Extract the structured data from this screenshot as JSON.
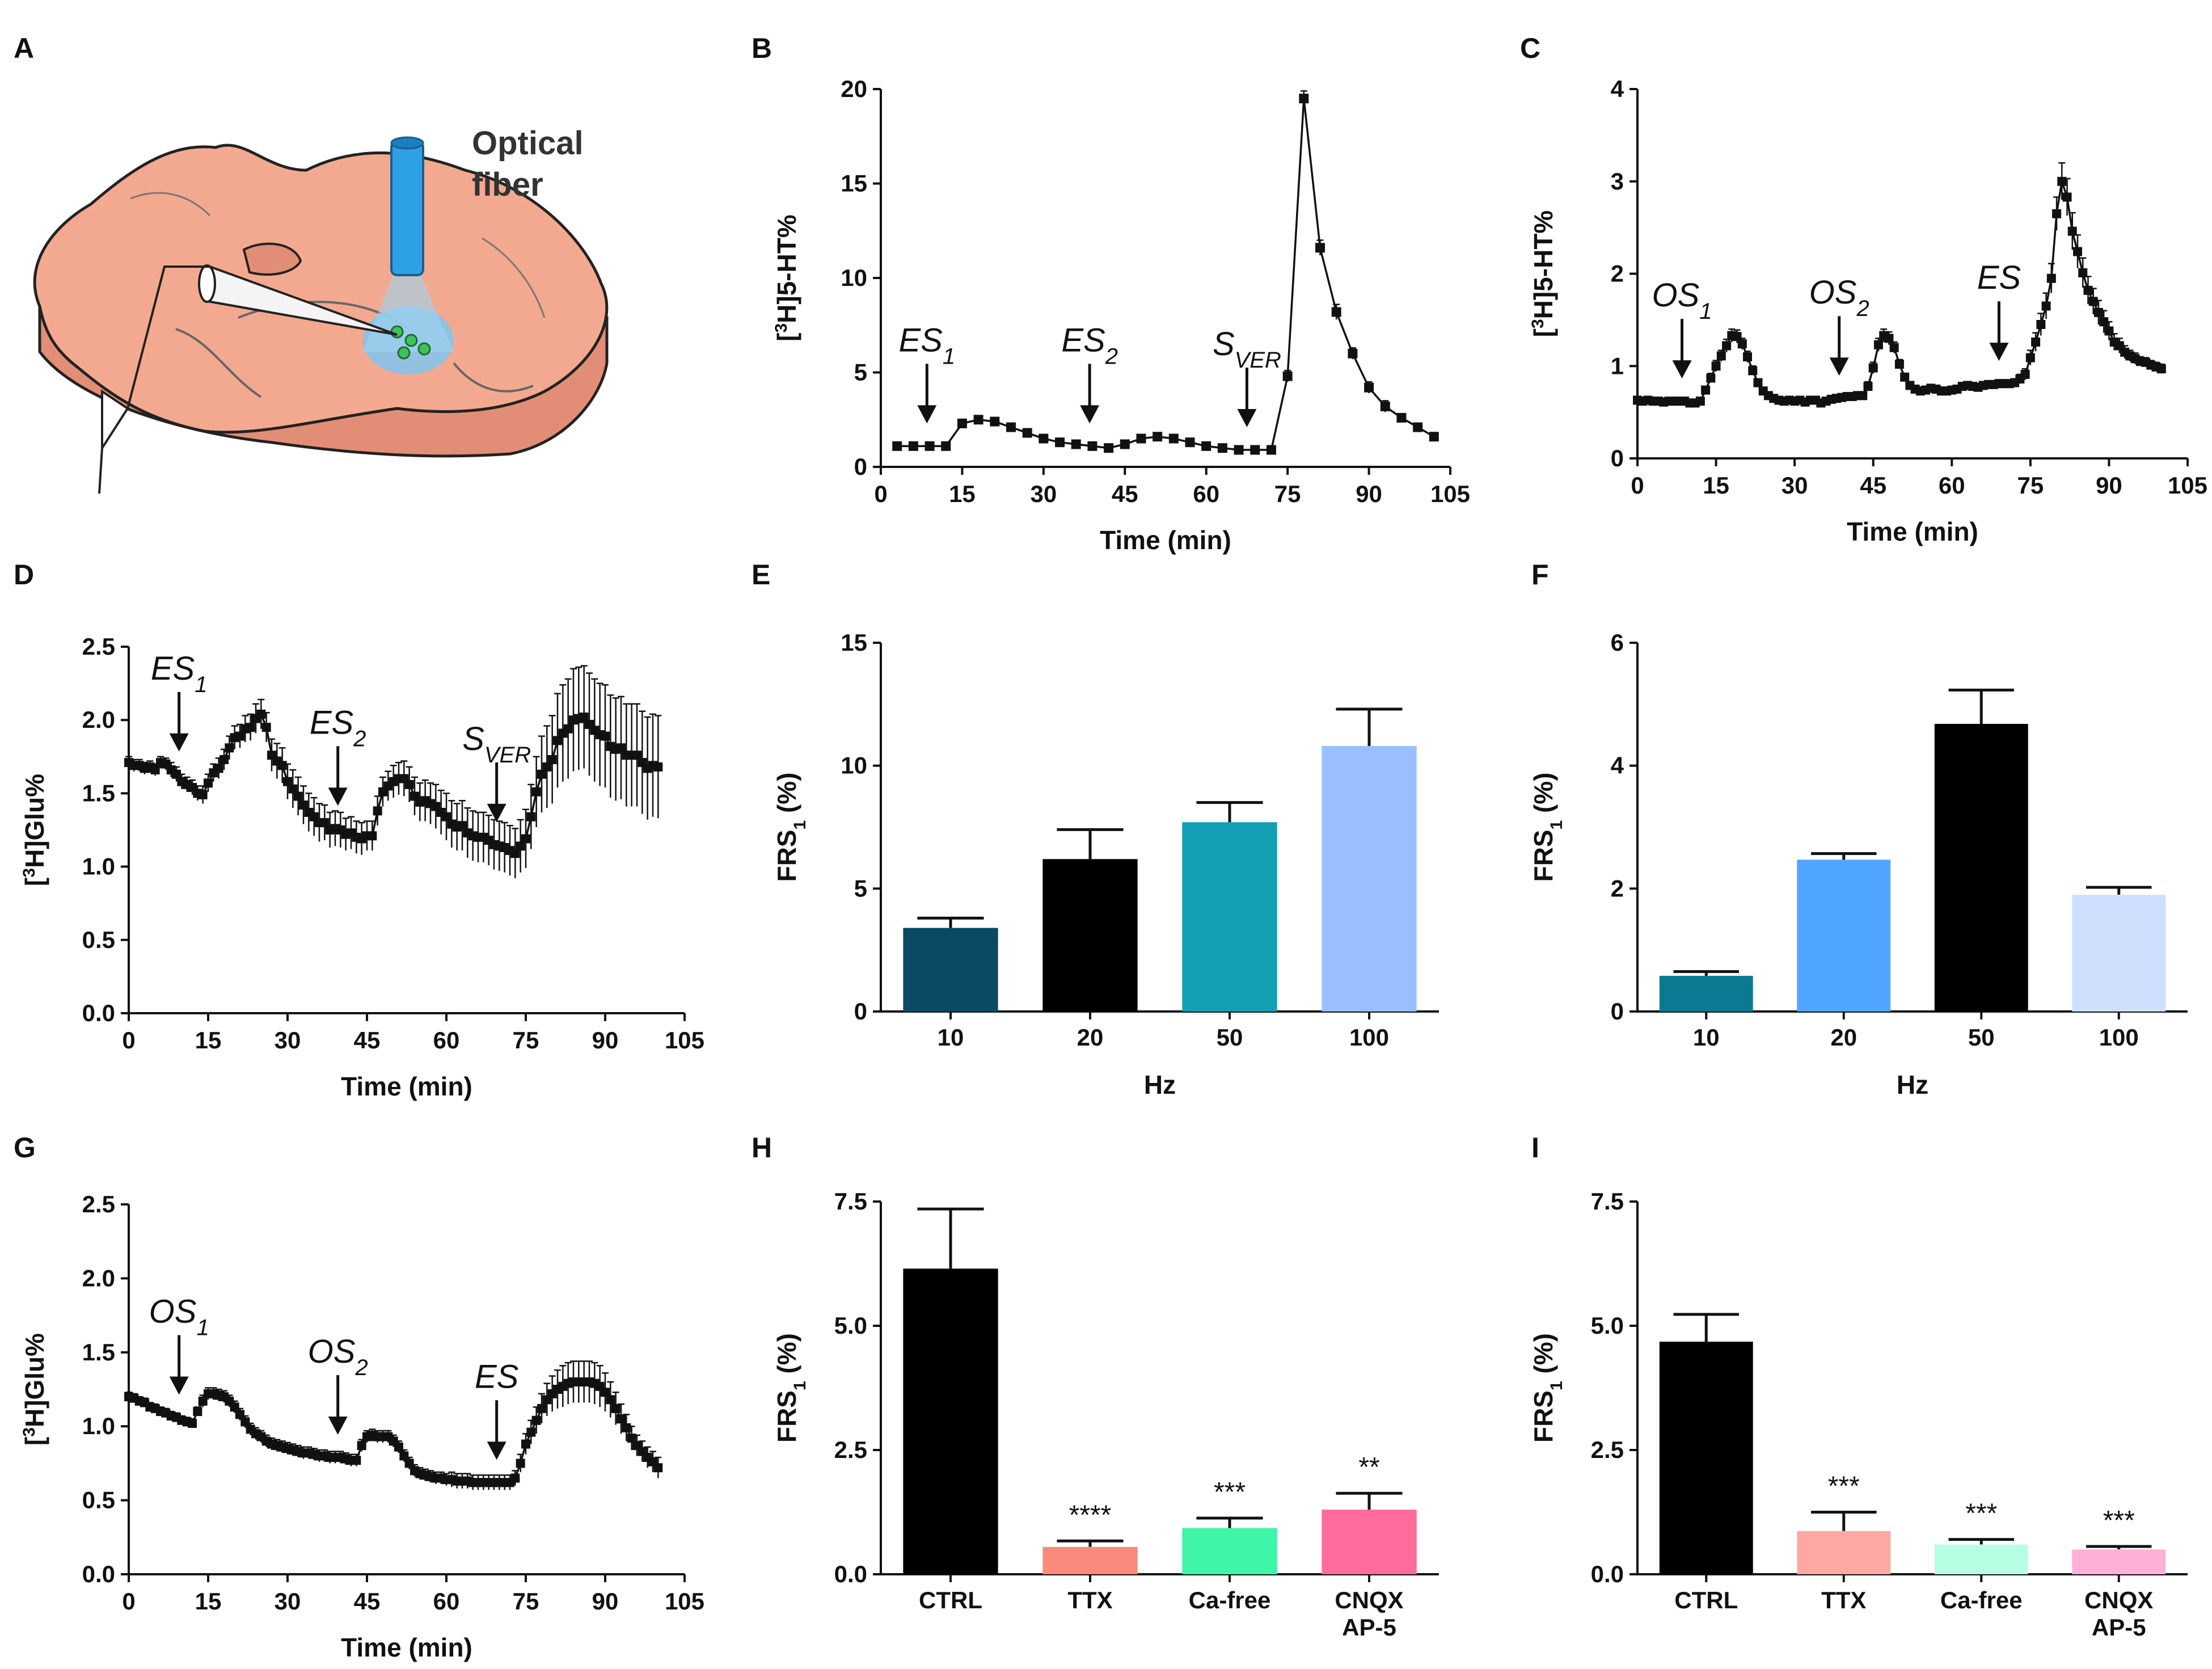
{
  "panel_labels": [
    "A",
    "B",
    "C",
    "D",
    "E",
    "F",
    "G",
    "H",
    "I"
  ],
  "schematic": {
    "fiber_label_1": "Optical",
    "fiber_label_2": "fiber",
    "colors": {
      "slice": "#f3a98f",
      "slice_side": "#e28e77",
      "fiber": "#2ea0e6",
      "glow": "#7fc4ee",
      "cells": "#3fc25a"
    }
  },
  "chart_data": [
    {
      "id": "B",
      "type": "line",
      "ylabel": "[3H]5-HT%",
      "xlabel": "Time (min)",
      "xlim": [
        0,
        105
      ],
      "ylim": [
        0,
        20
      ],
      "xticks": [
        0,
        15,
        30,
        45,
        60,
        75,
        90,
        105
      ],
      "yticks": [
        0,
        5,
        10,
        15,
        20
      ],
      "x": [
        3,
        6,
        9,
        12,
        15,
        18,
        21,
        24,
        27,
        30,
        33,
        36,
        39,
        42,
        45,
        48,
        51,
        54,
        57,
        60,
        63,
        66,
        69,
        72,
        75,
        78,
        81,
        84,
        87,
        90,
        93,
        96,
        99,
        102
      ],
      "y": [
        1.1,
        1.1,
        1.1,
        1.1,
        2.3,
        2.5,
        2.4,
        2.1,
        1.8,
        1.5,
        1.3,
        1.2,
        1.1,
        1.0,
        1.2,
        1.5,
        1.6,
        1.5,
        1.3,
        1.1,
        1.0,
        0.9,
        0.9,
        0.9,
        4.8,
        19.5,
        11.6,
        8.2,
        6.0,
        4.2,
        3.2,
        2.6,
        2.1,
        1.6
      ],
      "err": [
        0.1,
        0.1,
        0.1,
        0.1,
        0.2,
        0.2,
        0.2,
        0.2,
        0.1,
        0.1,
        0.1,
        0.1,
        0.1,
        0.1,
        0.1,
        0.1,
        0.1,
        0.1,
        0.1,
        0.1,
        0.1,
        0.1,
        0.1,
        0.1,
        0.3,
        0.4,
        0.4,
        0.4,
        0.3,
        0.3,
        0.3,
        0.2,
        0.2,
        0.2
      ],
      "arrows": [
        {
          "x": 8.5,
          "label": "ES",
          "sub": "1"
        },
        {
          "x": 38.5,
          "label": "ES",
          "sub": "2"
        },
        {
          "x": 67.5,
          "label": "S",
          "sub": "VER"
        }
      ],
      "color": "#111111"
    },
    {
      "id": "C",
      "type": "line",
      "ylabel": "[3H]5-HT%",
      "xlabel": "Time (min)",
      "xlim": [
        0,
        105
      ],
      "ylim": [
        0,
        4
      ],
      "xticks": [
        0,
        15,
        30,
        45,
        60,
        75,
        90,
        105
      ],
      "yticks": [
        0,
        1,
        2,
        3,
        4
      ],
      "x": [
        0,
        1,
        2,
        3,
        4,
        5,
        6,
        7,
        8,
        9,
        10,
        11,
        12,
        13,
        14,
        15,
        16,
        17,
        18,
        19,
        20,
        21,
        22,
        23,
        24,
        25,
        26,
        27,
        28,
        29,
        30,
        31,
        32,
        33,
        34,
        35,
        36,
        37,
        38,
        39,
        40,
        41,
        42,
        43,
        44,
        45,
        46,
        47,
        48,
        49,
        50,
        51,
        52,
        53,
        54,
        55,
        56,
        57,
        58,
        59,
        60,
        61,
        62,
        63,
        64,
        65,
        66,
        67,
        68,
        69,
        70,
        71,
        72,
        73,
        74,
        75,
        76,
        77,
        78,
        79,
        80,
        81,
        82,
        83,
        84,
        85,
        86,
        87,
        88,
        89,
        90,
        91,
        92,
        93,
        94,
        95,
        96,
        97,
        98,
        99,
        100
      ],
      "y": [
        0.63,
        0.62,
        0.63,
        0.62,
        0.62,
        0.61,
        0.62,
        0.62,
        0.62,
        0.62,
        0.6,
        0.6,
        0.62,
        0.74,
        0.87,
        1.0,
        1.11,
        1.22,
        1.33,
        1.32,
        1.24,
        1.1,
        0.95,
        0.82,
        0.73,
        0.68,
        0.65,
        0.63,
        0.62,
        0.63,
        0.62,
        0.63,
        0.61,
        0.63,
        0.63,
        0.6,
        0.62,
        0.64,
        0.65,
        0.66,
        0.67,
        0.67,
        0.68,
        0.68,
        0.78,
        0.98,
        1.23,
        1.33,
        1.3,
        1.2,
        1.02,
        0.88,
        0.79,
        0.75,
        0.73,
        0.74,
        0.76,
        0.75,
        0.73,
        0.73,
        0.74,
        0.75,
        0.78,
        0.79,
        0.78,
        0.77,
        0.79,
        0.8,
        0.8,
        0.81,
        0.81,
        0.81,
        0.82,
        0.86,
        0.91,
        1.09,
        1.26,
        1.45,
        1.65,
        1.95,
        2.65,
        3.0,
        2.83,
        2.46,
        2.24,
        2.01,
        1.82,
        1.7,
        1.58,
        1.48,
        1.38,
        1.26,
        1.22,
        1.15,
        1.11,
        1.08,
        1.05,
        1.04,
        1.01,
        0.99,
        0.97
      ],
      "err": [
        0.02,
        0.02,
        0.02,
        0.02,
        0.02,
        0.02,
        0.02,
        0.02,
        0.02,
        0.02,
        0.02,
        0.02,
        0.03,
        0.04,
        0.05,
        0.06,
        0.06,
        0.07,
        0.07,
        0.07,
        0.06,
        0.06,
        0.05,
        0.04,
        0.04,
        0.03,
        0.03,
        0.03,
        0.03,
        0.03,
        0.03,
        0.03,
        0.03,
        0.03,
        0.03,
        0.03,
        0.03,
        0.03,
        0.03,
        0.03,
        0.03,
        0.03,
        0.03,
        0.03,
        0.05,
        0.06,
        0.07,
        0.07,
        0.07,
        0.06,
        0.05,
        0.04,
        0.04,
        0.04,
        0.04,
        0.04,
        0.04,
        0.04,
        0.04,
        0.04,
        0.04,
        0.04,
        0.04,
        0.04,
        0.04,
        0.04,
        0.04,
        0.04,
        0.04,
        0.04,
        0.04,
        0.04,
        0.04,
        0.05,
        0.06,
        0.08,
        0.1,
        0.12,
        0.14,
        0.16,
        0.18,
        0.2,
        0.2,
        0.2,
        0.18,
        0.16,
        0.15,
        0.14,
        0.13,
        0.12,
        0.1,
        0.09,
        0.08,
        0.07,
        0.06,
        0.06,
        0.05,
        0.05,
        0.05,
        0.05,
        0.05
      ],
      "arrows": [
        {
          "x": 8.5,
          "label": "OS",
          "sub": "1"
        },
        {
          "x": 38.5,
          "label": "OS",
          "sub": "2"
        },
        {
          "x": 69,
          "label": "ES",
          "sub": ""
        }
      ],
      "color": "#111111"
    },
    {
      "id": "D",
      "type": "line",
      "ylabel": "[3H]Glu%",
      "xlabel": "Time (min)",
      "xlim": [
        0,
        105
      ],
      "ylim": [
        0,
        2.5
      ],
      "xticks": [
        0,
        15,
        30,
        45,
        60,
        75,
        90,
        105
      ],
      "yticks": [
        "0.0",
        "0.5",
        "1.0",
        "1.5",
        "2.0",
        "2.5"
      ],
      "x": [
        0,
        1,
        2,
        3,
        4,
        5,
        6,
        7,
        8,
        9,
        10,
        11,
        12,
        13,
        14,
        15,
        16,
        17,
        18,
        19,
        20,
        21,
        22,
        23,
        24,
        25,
        26,
        27,
        28,
        29,
        30,
        31,
        32,
        33,
        34,
        35,
        36,
        37,
        38,
        39,
        40,
        41,
        42,
        43,
        44,
        45,
        46,
        47,
        48,
        49,
        50,
        51,
        52,
        53,
        54,
        55,
        56,
        57,
        58,
        59,
        60,
        61,
        62,
        63,
        64,
        65,
        66,
        67,
        68,
        69,
        70,
        71,
        72,
        73,
        74,
        75,
        76,
        77,
        78,
        79,
        80,
        81,
        82,
        83,
        84,
        85,
        86,
        87,
        88,
        89,
        90,
        91,
        92,
        93,
        94,
        95,
        96,
        97,
        98,
        99,
        100
      ],
      "y": [
        1.71,
        1.69,
        1.69,
        1.67,
        1.68,
        1.66,
        1.71,
        1.7,
        1.66,
        1.63,
        1.58,
        1.56,
        1.54,
        1.5,
        1.49,
        1.57,
        1.64,
        1.67,
        1.73,
        1.81,
        1.88,
        1.89,
        1.94,
        1.95,
        2.01,
        2.04,
        1.95,
        1.76,
        1.72,
        1.69,
        1.58,
        1.53,
        1.48,
        1.42,
        1.37,
        1.34,
        1.3,
        1.3,
        1.25,
        1.26,
        1.25,
        1.22,
        1.23,
        1.2,
        1.19,
        1.21,
        1.21,
        1.38,
        1.51,
        1.55,
        1.58,
        1.6,
        1.6,
        1.56,
        1.48,
        1.44,
        1.45,
        1.43,
        1.41,
        1.37,
        1.34,
        1.29,
        1.27,
        1.28,
        1.23,
        1.21,
        1.2,
        1.2,
        1.18,
        1.15,
        1.14,
        1.13,
        1.11,
        1.09,
        1.14,
        1.19,
        1.34,
        1.51,
        1.63,
        1.68,
        1.73,
        1.86,
        1.91,
        1.94,
        2.0,
        2.01,
        2.02,
        1.97,
        1.93,
        1.9,
        1.89,
        1.82,
        1.8,
        1.81,
        1.76,
        1.76,
        1.76,
        1.71,
        1.67,
        1.69,
        1.68
      ],
      "err": [
        0.04,
        0.04,
        0.04,
        0.04,
        0.04,
        0.04,
        0.04,
        0.04,
        0.05,
        0.05,
        0.05,
        0.05,
        0.05,
        0.05,
        0.06,
        0.06,
        0.06,
        0.07,
        0.07,
        0.08,
        0.08,
        0.08,
        0.09,
        0.09,
        0.1,
        0.1,
        0.1,
        0.11,
        0.12,
        0.12,
        0.12,
        0.13,
        0.13,
        0.13,
        0.13,
        0.13,
        0.13,
        0.12,
        0.12,
        0.12,
        0.12,
        0.11,
        0.11,
        0.11,
        0.11,
        0.1,
        0.1,
        0.1,
        0.1,
        0.1,
        0.11,
        0.11,
        0.12,
        0.12,
        0.13,
        0.13,
        0.14,
        0.14,
        0.15,
        0.15,
        0.16,
        0.16,
        0.16,
        0.17,
        0.17,
        0.17,
        0.17,
        0.17,
        0.17,
        0.17,
        0.17,
        0.17,
        0.17,
        0.17,
        0.18,
        0.2,
        0.22,
        0.24,
        0.26,
        0.28,
        0.3,
        0.32,
        0.33,
        0.34,
        0.35,
        0.35,
        0.35,
        0.35,
        0.35,
        0.35,
        0.35,
        0.35,
        0.35,
        0.35,
        0.35,
        0.35,
        0.35,
        0.35,
        0.35,
        0.35,
        0.35
      ],
      "arrows": [
        {
          "x": 9.5,
          "label": "ES",
          "sub": "1"
        },
        {
          "x": 39.5,
          "label": "ES",
          "sub": "2"
        },
        {
          "x": 69.5,
          "label": "S",
          "sub": "VER"
        }
      ],
      "color": "#111111"
    },
    {
      "id": "E",
      "type": "bar",
      "ylabel": "FRS1 (%)",
      "xlabel": "Hz",
      "categories": [
        "10",
        "20",
        "50",
        "100"
      ],
      "values": [
        3.4,
        6.2,
        7.7,
        10.8
      ],
      "err": [
        0.4,
        1.2,
        0.8,
        1.5
      ],
      "colors": [
        "#0a4a63",
        "#000000",
        "#139fb4",
        "#99bfff"
      ],
      "ylim": [
        0,
        15
      ],
      "yticks": [
        0,
        5,
        10,
        15
      ],
      "sig": [
        "",
        "",
        "",
        ""
      ]
    },
    {
      "id": "F",
      "type": "bar",
      "ylabel": "FRS1 (%)",
      "xlabel": "Hz",
      "categories": [
        "10",
        "20",
        "50",
        "100"
      ],
      "values": [
        0.58,
        2.47,
        4.68,
        1.9
      ],
      "err": [
        0.07,
        0.1,
        0.55,
        0.12
      ],
      "colors": [
        "#0b7a92",
        "#50a5ff",
        "#000000",
        "#cfe0ff"
      ],
      "ylim": [
        0,
        6
      ],
      "yticks": [
        0,
        2,
        4,
        6
      ],
      "sig": [
        "",
        "",
        "",
        ""
      ]
    },
    {
      "id": "G",
      "type": "line",
      "ylabel": "[3H]Glu%",
      "xlabel": "Time (min)",
      "xlim": [
        0,
        105
      ],
      "ylim": [
        0,
        2.5
      ],
      "xticks": [
        0,
        15,
        30,
        45,
        60,
        75,
        90,
        105
      ],
      "yticks": [
        "0.0",
        "0.5",
        "1.0",
        "1.5",
        "2.0",
        "2.5"
      ],
      "x": [
        0,
        1,
        2,
        3,
        4,
        5,
        6,
        7,
        8,
        9,
        10,
        11,
        12,
        13,
        14,
        15,
        16,
        17,
        18,
        19,
        20,
        21,
        22,
        23,
        24,
        25,
        26,
        27,
        28,
        29,
        30,
        31,
        32,
        33,
        34,
        35,
        36,
        37,
        38,
        39,
        40,
        41,
        42,
        43,
        44,
        45,
        46,
        47,
        48,
        49,
        50,
        51,
        52,
        53,
        54,
        55,
        56,
        57,
        58,
        59,
        60,
        61,
        62,
        63,
        64,
        65,
        66,
        67,
        68,
        69,
        70,
        71,
        72,
        73,
        74,
        75,
        76,
        77,
        78,
        79,
        80,
        81,
        82,
        83,
        84,
        85,
        86,
        87,
        88,
        89,
        90,
        91,
        92,
        93,
        94,
        95,
        96,
        97,
        98,
        99,
        100
      ],
      "y": [
        1.2,
        1.19,
        1.17,
        1.16,
        1.13,
        1.12,
        1.1,
        1.09,
        1.07,
        1.06,
        1.04,
        1.03,
        1.02,
        1.1,
        1.17,
        1.22,
        1.22,
        1.21,
        1.2,
        1.17,
        1.13,
        1.08,
        1.03,
        0.98,
        0.95,
        0.93,
        0.9,
        0.88,
        0.87,
        0.86,
        0.85,
        0.84,
        0.83,
        0.82,
        0.82,
        0.81,
        0.8,
        0.8,
        0.79,
        0.79,
        0.79,
        0.78,
        0.77,
        0.77,
        0.87,
        0.93,
        0.94,
        0.93,
        0.93,
        0.93,
        0.9,
        0.86,
        0.8,
        0.75,
        0.7,
        0.68,
        0.67,
        0.66,
        0.65,
        0.65,
        0.64,
        0.64,
        0.63,
        0.63,
        0.63,
        0.62,
        0.62,
        0.62,
        0.62,
        0.62,
        0.62,
        0.62,
        0.62,
        0.65,
        0.75,
        0.88,
        0.96,
        1.04,
        1.12,
        1.18,
        1.22,
        1.25,
        1.27,
        1.29,
        1.3,
        1.3,
        1.3,
        1.3,
        1.29,
        1.27,
        1.23,
        1.18,
        1.12,
        1.05,
        0.99,
        0.92,
        0.87,
        0.83,
        0.79,
        0.76,
        0.72
      ],
      "err": [
        0.03,
        0.03,
        0.03,
        0.03,
        0.03,
        0.03,
        0.03,
        0.03,
        0.03,
        0.03,
        0.03,
        0.03,
        0.03,
        0.03,
        0.04,
        0.04,
        0.04,
        0.04,
        0.04,
        0.04,
        0.04,
        0.04,
        0.04,
        0.04,
        0.04,
        0.04,
        0.04,
        0.04,
        0.04,
        0.04,
        0.04,
        0.04,
        0.04,
        0.04,
        0.04,
        0.04,
        0.04,
        0.04,
        0.04,
        0.04,
        0.04,
        0.04,
        0.04,
        0.04,
        0.04,
        0.04,
        0.04,
        0.04,
        0.04,
        0.04,
        0.04,
        0.04,
        0.04,
        0.04,
        0.04,
        0.04,
        0.04,
        0.04,
        0.04,
        0.04,
        0.04,
        0.05,
        0.05,
        0.05,
        0.05,
        0.05,
        0.05,
        0.05,
        0.05,
        0.05,
        0.05,
        0.05,
        0.05,
        0.05,
        0.06,
        0.07,
        0.08,
        0.09,
        0.1,
        0.11,
        0.12,
        0.13,
        0.14,
        0.14,
        0.14,
        0.14,
        0.14,
        0.14,
        0.14,
        0.14,
        0.13,
        0.12,
        0.11,
        0.1,
        0.09,
        0.08,
        0.07,
        0.07,
        0.07,
        0.07,
        0.07
      ],
      "arrows": [
        {
          "x": 9.5,
          "label": "OS",
          "sub": "1"
        },
        {
          "x": 39.5,
          "label": "OS",
          "sub": "2"
        },
        {
          "x": 69.5,
          "label": "ES",
          "sub": ""
        }
      ],
      "color": "#111111"
    },
    {
      "id": "H",
      "type": "bar",
      "ylabel": "FRS1 (%)",
      "xlabel": "",
      "categories": [
        "CTRL",
        "TTX",
        "Ca-free",
        "CNQX AP-5"
      ],
      "values": [
        6.15,
        0.55,
        0.93,
        1.3
      ],
      "err": [
        1.2,
        0.12,
        0.2,
        0.33
      ],
      "colors": [
        "#000000",
        "#f98a7c",
        "#3ff5a8",
        "#ff6b9a"
      ],
      "ylim": [
        0,
        7.5
      ],
      "yticks": [
        "0.0",
        "2.5",
        "5.0",
        "7.5"
      ],
      "sig": [
        "",
        "****",
        "***",
        "**"
      ]
    },
    {
      "id": "I",
      "type": "bar",
      "ylabel": "FRS1 (%)",
      "xlabel": "",
      "categories": [
        "CTRL",
        "TTX",
        "Ca-free",
        "CNQX AP-5"
      ],
      "values": [
        4.68,
        0.87,
        0.6,
        0.5
      ],
      "err": [
        0.55,
        0.38,
        0.1,
        0.06
      ],
      "colors": [
        "#000000",
        "#fda8a0",
        "#b6ffe2",
        "#ffb0d8"
      ],
      "ylim": [
        0,
        7.5
      ],
      "yticks": [
        "0.0",
        "2.5",
        "5.0",
        "7.5"
      ],
      "sig": [
        "",
        "***",
        "***",
        "***"
      ]
    }
  ]
}
